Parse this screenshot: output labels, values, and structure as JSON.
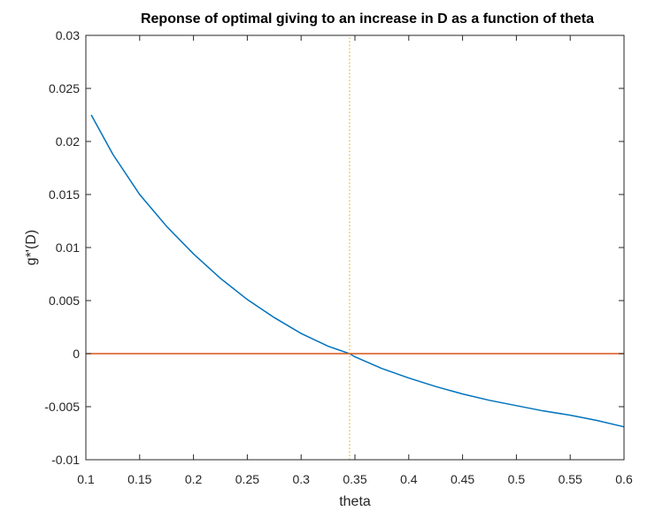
{
  "chart_data": {
    "type": "line",
    "title": "Reponse of optimal giving to an increase in D as a function of theta",
    "xlabel": "theta",
    "ylabel": "g*'(D)",
    "xlim": [
      0.1,
      0.6
    ],
    "ylim": [
      -0.01,
      0.03
    ],
    "xticks": [
      "0.1",
      "0.15",
      "0.2",
      "0.25",
      "0.3",
      "0.35",
      "0.4",
      "0.45",
      "0.5",
      "0.55",
      "0.6"
    ],
    "yticks": [
      "-0.01",
      "-0.005",
      "0",
      "0.005",
      "0.01",
      "0.015",
      "0.02",
      "0.025",
      "0.03"
    ],
    "grid": false,
    "series": [
      {
        "color": "#0072bd",
        "style": "solid",
        "x": [
          0.105,
          0.125,
          0.15,
          0.175,
          0.2,
          0.225,
          0.25,
          0.275,
          0.3,
          0.325,
          0.345,
          0.35,
          0.375,
          0.4,
          0.425,
          0.45,
          0.475,
          0.5,
          0.525,
          0.55,
          0.575,
          0.6
        ],
        "y": [
          0.0225,
          0.0188,
          0.015,
          0.012,
          0.0094,
          0.0071,
          0.0051,
          0.0034,
          0.0019,
          0.0007,
          0.0,
          -0.0003,
          -0.0014,
          -0.0023,
          -0.0031,
          -0.0038,
          -0.0044,
          -0.0049,
          -0.0054,
          -0.0058,
          -0.0063,
          -0.0069
        ]
      },
      {
        "color": "#d95319",
        "style": "solid",
        "x": [
          0.1,
          0.6
        ],
        "y": [
          0,
          0
        ]
      },
      {
        "color": "#edb120",
        "style": "dotted",
        "x": [
          0.345,
          0.345
        ],
        "y": [
          -0.01,
          0.03
        ]
      }
    ]
  }
}
